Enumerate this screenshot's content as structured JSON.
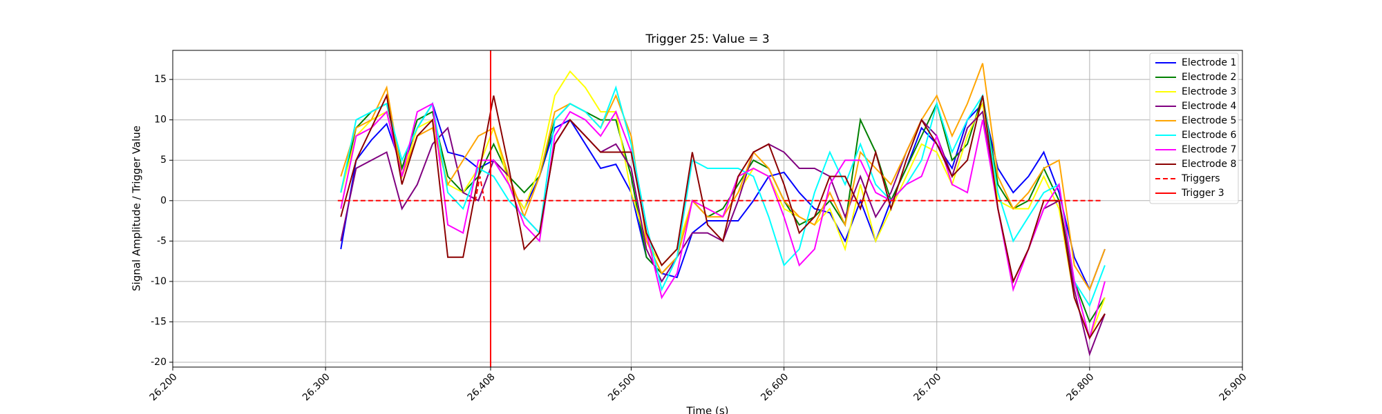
{
  "chart_data": {
    "type": "line",
    "title": "Trigger 25: Value = 3",
    "xlabel": "Time (s)",
    "ylabel": "Signal Amplitude / Trigger Value",
    "x": [
      26.31,
      26.32,
      26.33,
      26.34,
      26.35,
      26.36,
      26.37,
      26.38,
      26.39,
      26.4,
      26.41,
      26.42,
      26.43,
      26.44,
      26.45,
      26.46,
      26.47,
      26.48,
      26.49,
      26.5,
      26.51,
      26.52,
      26.53,
      26.54,
      26.55,
      26.56,
      26.57,
      26.58,
      26.59,
      26.6,
      26.61,
      26.62,
      26.63,
      26.64,
      26.65,
      26.66,
      26.67,
      26.68,
      26.69,
      26.7,
      26.71,
      26.72,
      26.73,
      26.74,
      26.75,
      26.76,
      26.77,
      26.78,
      26.79,
      26.8,
      26.81
    ],
    "series": [
      {
        "name": "Electrode 1",
        "color": "#0000ff",
        "values": [
          -6,
          5,
          7.5,
          9.5,
          4,
          9,
          12,
          6,
          5.5,
          4,
          5,
          2,
          -1,
          3,
          9,
          10,
          7,
          4,
          4.5,
          1,
          -7,
          -9,
          -9.5,
          -4,
          -2.5,
          -2.5,
          -2.5,
          0,
          3,
          3.5,
          1,
          -1,
          -1.5,
          -5,
          0,
          -5,
          0,
          4,
          9,
          7,
          4,
          10,
          12,
          4,
          1,
          3,
          6,
          1,
          -7,
          -11,
          -6
        ]
      },
      {
        "name": "Electrode 2",
        "color": "#008000",
        "values": [
          1,
          9,
          11,
          12,
          4,
          10,
          11,
          3,
          1,
          3,
          7,
          3,
          1,
          3,
          10,
          12,
          11,
          10,
          10,
          3,
          -7,
          -9,
          -7,
          0,
          -2,
          -1,
          2,
          5,
          4,
          0,
          -3,
          -2,
          0,
          -3,
          10,
          6,
          0,
          4,
          8,
          12,
          5,
          7,
          13,
          2,
          -1,
          0,
          4,
          0,
          -10,
          -15,
          -12
        ]
      },
      {
        "name": "Electrode 3",
        "color": "#ffff00",
        "values": [
          1,
          8,
          10,
          11,
          3,
          9,
          10,
          2,
          1,
          4,
          9,
          2,
          -1,
          4,
          13,
          16,
          14,
          11,
          11,
          1,
          -5,
          -8,
          -6,
          0,
          -1,
          -2,
          1,
          4,
          3,
          -1,
          -2,
          -3,
          -1,
          -6,
          2,
          -5,
          -1,
          3,
          7,
          6,
          2,
          8,
          12,
          0,
          -1,
          -1,
          3,
          -1,
          -12,
          -17,
          -12
        ]
      },
      {
        "name": "Electrode 4",
        "color": "#800080",
        "values": [
          -5,
          4,
          5,
          6,
          -1,
          2,
          7,
          9,
          1,
          0,
          5,
          3,
          -2,
          -4,
          7,
          10,
          8,
          6,
          7,
          4,
          -6,
          -10,
          -7,
          -4,
          -4,
          -5,
          0,
          6,
          7,
          6,
          4,
          4,
          3,
          -2,
          3,
          -2,
          1,
          6,
          10,
          8,
          3,
          9,
          11,
          -1,
          -10,
          -6,
          -1,
          0,
          -11,
          -19,
          -14
        ]
      },
      {
        "name": "Electrode 5",
        "color": "#ffa500",
        "values": [
          3,
          9,
          10,
          14,
          3,
          8,
          9,
          2,
          5,
          8,
          9,
          3,
          -2,
          3,
          11,
          12,
          11,
          9,
          13,
          8,
          -5,
          -9,
          -7,
          0,
          -2,
          -2,
          1,
          6,
          4,
          0,
          -2,
          -3,
          1,
          -3,
          6,
          4,
          2,
          6,
          10,
          13,
          8,
          12,
          17,
          3,
          -1,
          1,
          4,
          5,
          -8,
          -11,
          -6
        ]
      },
      {
        "name": "Electrode 6",
        "color": "#00ffff",
        "values": [
          1,
          10,
          11,
          12,
          5,
          9,
          12,
          1,
          -1,
          4,
          3,
          0,
          -2,
          -4,
          10,
          12,
          11,
          9,
          14,
          7,
          -3,
          -11,
          -7,
          5,
          4,
          4,
          4,
          3,
          -2,
          -8,
          -6,
          1,
          6,
          2,
          7,
          2,
          0,
          2,
          5,
          12,
          6,
          10,
          13,
          1,
          -5,
          -2,
          1,
          2,
          -10,
          -13,
          -8
        ]
      },
      {
        "name": "Electrode 7",
        "color": "#ff00ff",
        "values": [
          -1,
          8,
          9,
          11,
          3,
          11,
          12,
          -3,
          -4,
          5,
          5,
          2,
          -3,
          -5,
          8,
          11,
          10,
          8,
          11,
          6,
          -4,
          -12,
          -9,
          0,
          -1,
          -2,
          3,
          4,
          3,
          -2,
          -8,
          -6,
          2,
          5,
          5,
          1,
          0,
          2,
          3,
          8,
          2,
          1,
          10,
          -1,
          -11,
          -6,
          -1,
          2,
          -10,
          -17,
          -10
        ]
      },
      {
        "name": "Electrode 8",
        "color": "#8b0000",
        "values": [
          -2,
          5,
          9,
          13,
          2,
          8,
          10,
          -7,
          -7,
          3,
          13,
          4,
          -6,
          -4,
          7,
          10,
          8,
          6,
          6,
          6,
          -4,
          -8,
          -6,
          6,
          -3,
          -5,
          3,
          6,
          7,
          2,
          -4,
          -2,
          3,
          3,
          -1,
          6,
          -1,
          5,
          10,
          7,
          3,
          5,
          13,
          -1,
          -10,
          -6,
          0,
          0,
          -12,
          -17,
          -14
        ]
      },
      {
        "name": "Triggers",
        "color": "#ff0000",
        "dashed": true,
        "x": [
          26.308,
          26.398,
          26.401,
          26.404,
          26.808
        ],
        "values": [
          0,
          0,
          3,
          0,
          0
        ]
      }
    ],
    "vlines": [
      {
        "name": "Trigger 3",
        "x": 26.408,
        "color": "#ff0000"
      }
    ],
    "xlim": [
      26.2,
      26.9
    ],
    "xticks": [
      {
        "value": 26.2,
        "label": "26.200"
      },
      {
        "value": 26.3,
        "label": "26.300"
      },
      {
        "value": 26.408,
        "label": "26.408"
      },
      {
        "value": 26.5,
        "label": "26.500"
      },
      {
        "value": 26.6,
        "label": "26.600"
      },
      {
        "value": 26.7,
        "label": "26.700"
      },
      {
        "value": 26.8,
        "label": "26.800"
      },
      {
        "value": 26.9,
        "label": "26.900"
      }
    ],
    "ylim": [
      -20.6,
      18.6
    ],
    "yticks": [
      -20,
      -15,
      -10,
      -5,
      0,
      5,
      10,
      15
    ],
    "grid": true,
    "legend": "upper right"
  }
}
